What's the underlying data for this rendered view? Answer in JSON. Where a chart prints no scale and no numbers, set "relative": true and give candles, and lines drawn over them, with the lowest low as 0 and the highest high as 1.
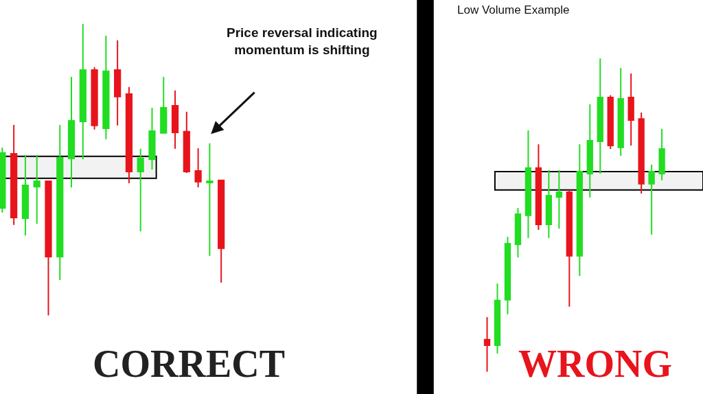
{
  "chart_data": [
    {
      "type": "candlestick",
      "relative": true,
      "annotations": [
        "Price reversal indicating momentum is shifting",
        "CORRECT"
      ],
      "categories": [
        null,
        null,
        null,
        null,
        null,
        null,
        null,
        null,
        null,
        null,
        null,
        null,
        null,
        null,
        null,
        null,
        null,
        null,
        null,
        null
      ],
      "ohlc": [
        [
          0.369,
          0.576,
          0.353,
          0.558
        ],
        [
          0.555,
          0.654,
          0.311,
          0.336
        ],
        [
          0.334,
          0.551,
          0.275,
          0.447
        ],
        [
          0.442,
          0.551,
          0.315,
          0.461
        ],
        [
          0.461,
          0.461,
          0,
          0.202
        ],
        [
          0.202,
          0.654,
          0.122,
          0.541
        ],
        [
          0.539,
          0.819,
          0.44,
          0.668
        ],
        [
          0.666,
          1,
          0.536,
          0.842
        ],
        [
          0.842,
          0.852,
          0.638,
          0.652
        ],
        [
          0.642,
          0.96,
          0.605,
          0.838
        ],
        [
          0.842,
          0.944,
          0.652,
          0.751
        ],
        [
          0.76,
          0.784,
          0.454,
          0.494
        ],
        [
          0.494,
          0.572,
          0.289,
          0.539
        ],
        [
          0.536,
          0.713,
          0.501,
          0.633
        ],
        [
          0.626,
          0.819,
          0.624,
          0.713
        ],
        [
          0.72,
          0.772,
          0.572,
          0.628
        ],
        [
          0.631,
          0.699,
          0.489,
          0.494
        ],
        [
          0.496,
          0.574,
          0.44,
          0.459
        ],
        [
          0.456,
          0.591,
          0.205,
          0.461
        ],
        [
          0.464,
          0.464,
          0.113,
          0.231
        ]
      ],
      "colors": [
        "#22dd22",
        "#e8141c",
        "#22dd22",
        "#22dd22",
        "#e8141c",
        "#22dd22",
        "#22dd22",
        "#22dd22",
        "#e8141c",
        "#22dd22",
        "#e8141c",
        "#e8141c",
        "#22dd22",
        "#22dd22",
        "#22dd22",
        "#e8141c",
        "#e8141c",
        "#e8141c",
        "#22dd22",
        "#e8141c"
      ],
      "bands": [
        {
          "axis": "y",
          "from": 0.471,
          "to": 0.546
        }
      ],
      "tick_labels": false
    },
    {
      "type": "candlestick",
      "relative": true,
      "title": "Low Volume Example",
      "annotations": [
        "WRONG"
      ],
      "categories": [
        null,
        null,
        null,
        null,
        null,
        null,
        null,
        null,
        null,
        null,
        null,
        null,
        null,
        null,
        null,
        null,
        null,
        null
      ],
      "ohlc": [
        [
          0.103,
          0.175,
          0,
          0.085
        ],
        [
          0.085,
          0.282,
          0.059,
          0.228
        ],
        [
          0.23,
          0.431,
          0.184,
          0.409
        ],
        [
          0.407,
          0.523,
          0.365,
          0.503
        ],
        [
          0.499,
          0.77,
          0.427,
          0.65
        ],
        [
          0.65,
          0.726,
          0.453,
          0.47
        ],
        [
          0.47,
          0.643,
          0.427,
          0.562
        ],
        [
          0.558,
          0.643,
          0.457,
          0.573
        ],
        [
          0.573,
          0.58,
          0.208,
          0.37
        ],
        [
          0.37,
          0.726,
          0.306,
          0.639
        ],
        [
          0.632,
          0.853,
          0.556,
          0.737
        ],
        [
          0.735,
          1,
          0.632,
          0.875
        ],
        [
          0.875,
          0.882,
          0.711,
          0.722
        ],
        [
          0.716,
          0.969,
          0.689,
          0.871
        ],
        [
          0.875,
          0.952,
          0.722,
          0.803
        ],
        [
          0.807,
          0.827,
          0.569,
          0.6
        ],
        [
          0.6,
          0.661,
          0.438,
          0.639
        ],
        [
          0.632,
          0.775,
          0.611,
          0.711
        ]
      ],
      "colors": [
        "#e8141c",
        "#22dd22",
        "#22dd22",
        "#22dd22",
        "#22dd22",
        "#e8141c",
        "#22dd22",
        "#22dd22",
        "#e8141c",
        "#22dd22",
        "#22dd22",
        "#22dd22",
        "#e8141c",
        "#22dd22",
        "#e8141c",
        "#e8141c",
        "#22dd22",
        "#22dd22"
      ],
      "bands": [
        {
          "axis": "y",
          "from": 0.58,
          "to": 0.639
        }
      ],
      "tick_labels": false
    }
  ]
}
